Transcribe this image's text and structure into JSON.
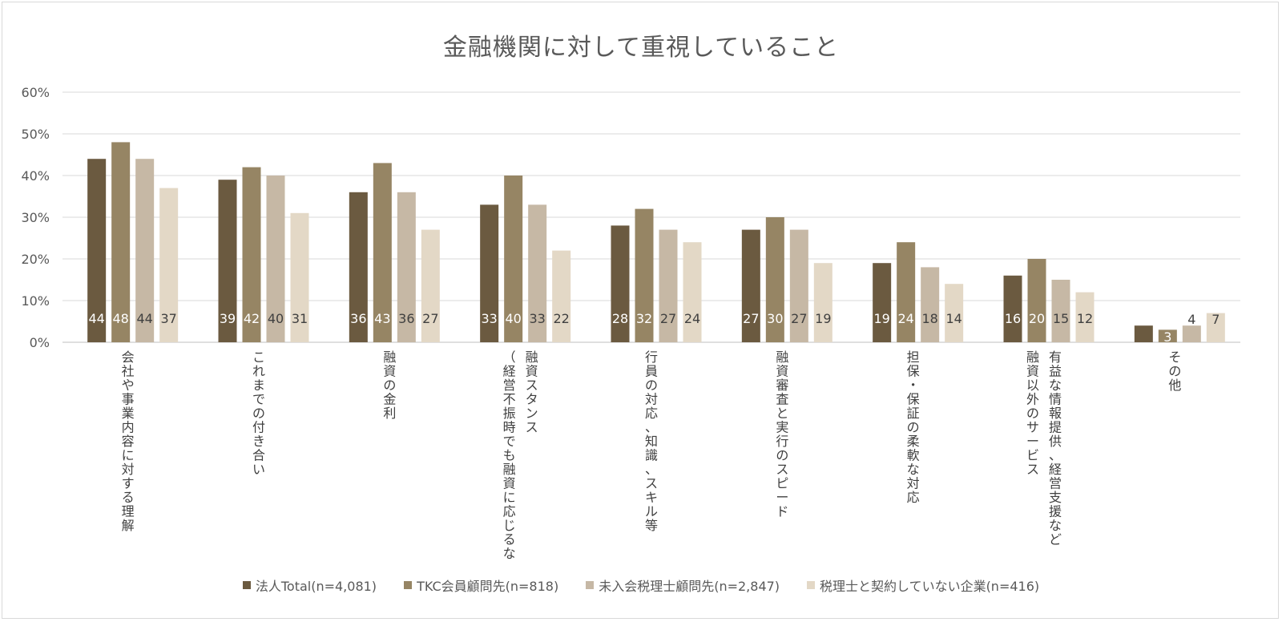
{
  "chart_data": {
    "type": "bar",
    "title": "金融機関に対して重視していること",
    "ylim": [
      0,
      60
    ],
    "yticks": [
      "0%",
      "10%",
      "20%",
      "30%",
      "40%",
      "50%",
      "60%"
    ],
    "grid": true,
    "legend_position": "bottom",
    "categories": [
      [
        "会社や事業内容に対する理解"
      ],
      [
        "これまでの付き合い"
      ],
      [
        "融資の金利"
      ],
      [
        "融資スタンス",
        "（経営不振時でも融資に応じるな"
      ],
      [
        "行員の対応、知識、スキル等"
      ],
      [
        "融資審査と実行のスピード"
      ],
      [
        "担保・保証の柔軟な対応"
      ],
      [
        "有益な情報提供、経営支援など",
        "融資以外のサービス"
      ],
      [
        "その他"
      ]
    ],
    "series": [
      {
        "name": "法人Total(n=4,081)",
        "color": "#6b5a40",
        "label_color": "#ffffff",
        "values": [
          44,
          39,
          36,
          33,
          28,
          27,
          19,
          16,
          4
        ]
      },
      {
        "name": "TKC会員顧問先(n=818)",
        "color": "#968564",
        "label_color": "#ffffff",
        "values": [
          48,
          42,
          43,
          40,
          32,
          30,
          24,
          20,
          3
        ]
      },
      {
        "name": "未入会税理士顧問先(n=2,847)",
        "color": "#c6b8a5",
        "label_color": "#404040",
        "values": [
          44,
          40,
          36,
          33,
          27,
          27,
          18,
          15,
          4
        ]
      },
      {
        "name": "税理士と契約していない企業(n=416)",
        "color": "#e3d8c6",
        "label_color": "#404040",
        "values": [
          37,
          31,
          27,
          22,
          24,
          19,
          14,
          12,
          7
        ]
      }
    ]
  }
}
